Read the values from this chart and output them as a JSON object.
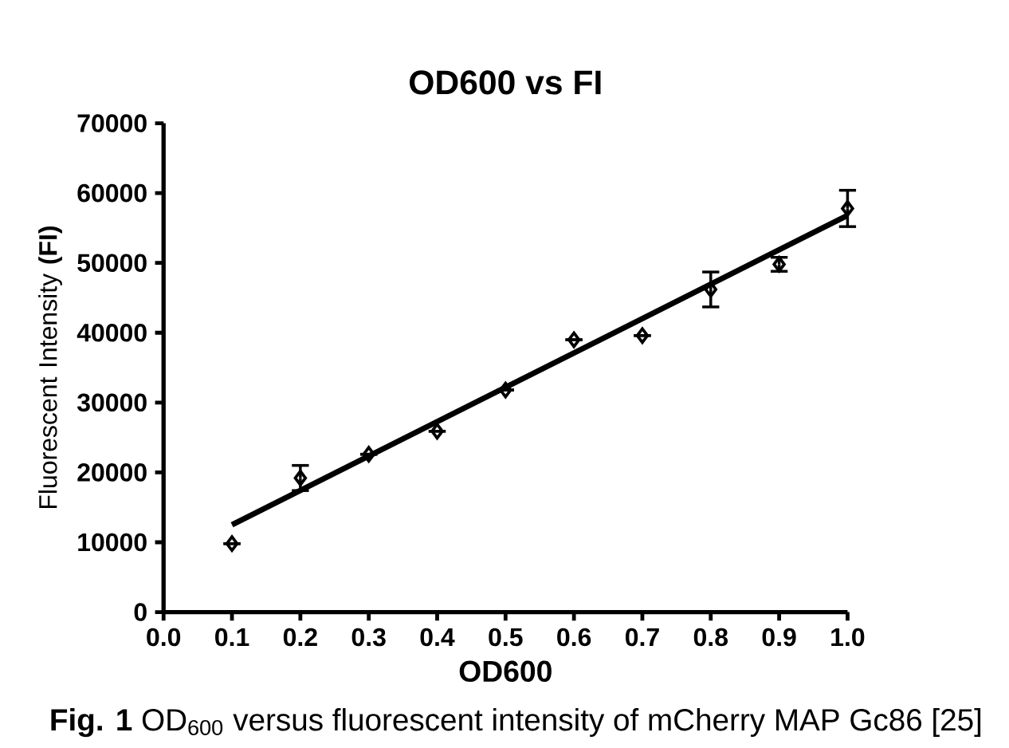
{
  "chart_data": {
    "type": "scatter",
    "title": "OD600 vs FI",
    "xlabel": "OD600",
    "ylabel": "Fluorescent Intensity **(FI)**",
    "annotations": [
      "**Fig. 1** OD$_{600}$ versus fluorescent intensity of mCherry MAP Gc86 [25]"
    ],
    "xlim": [
      0,
      1
    ],
    "ylim": [
      0,
      70000
    ],
    "xticks": [
      {
        "value": 0,
        "label": "0.0"
      },
      0.1,
      0.2,
      0.3,
      0.4,
      0.5,
      0.6,
      0.7,
      0.8,
      0.9,
      {
        "value": 1,
        "label": "1.0"
      }
    ],
    "yticks": [
      0,
      10000,
      20000,
      30000,
      40000,
      50000,
      60000,
      70000
    ],
    "series": [
      {
        "marker": "diamond",
        "color": "#000000",
        "x": [
          0.1,
          0.2,
          0.3,
          0.4,
          0.5,
          0.6,
          0.7,
          0.8,
          0.9,
          1.0
        ],
        "values": [
          9800,
          19200,
          22600,
          25900,
          31800,
          39000,
          39600,
          46200,
          49800,
          57800
        ],
        "errors": [
          null,
          1800,
          null,
          null,
          null,
          null,
          null,
          2500,
          1000,
          2600
        ]
      },
      {
        "type": "line",
        "color": "#000000",
        "x": [
          0.1,
          1.0
        ],
        "values": [
          12500,
          56800
        ]
      }
    ]
  }
}
